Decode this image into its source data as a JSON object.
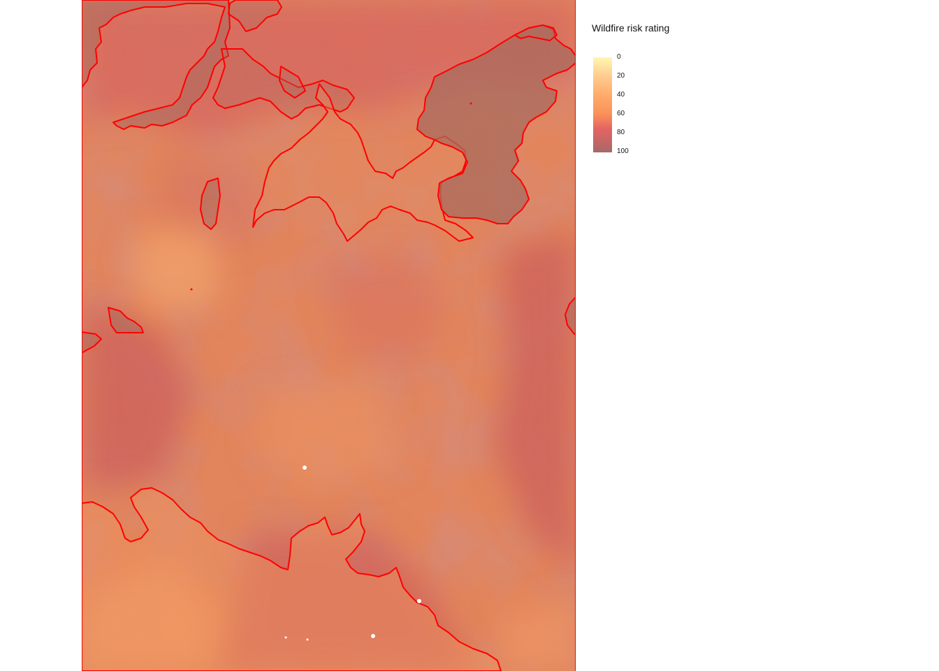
{
  "legend": {
    "title": "Wildfire risk rating",
    "ticks": [
      "0",
      "20",
      "40",
      "60",
      "80",
      "100"
    ],
    "colors": [
      "#fff7b2",
      "#ffcc8f",
      "#ffab6a",
      "#f99159",
      "#e56464",
      "#a86768"
    ]
  },
  "map": {
    "base_color": "#e2855c",
    "high_risk_color": "#c86460",
    "highest_risk_color": "#a96b5e",
    "boundary_color": "#ff0000"
  }
}
